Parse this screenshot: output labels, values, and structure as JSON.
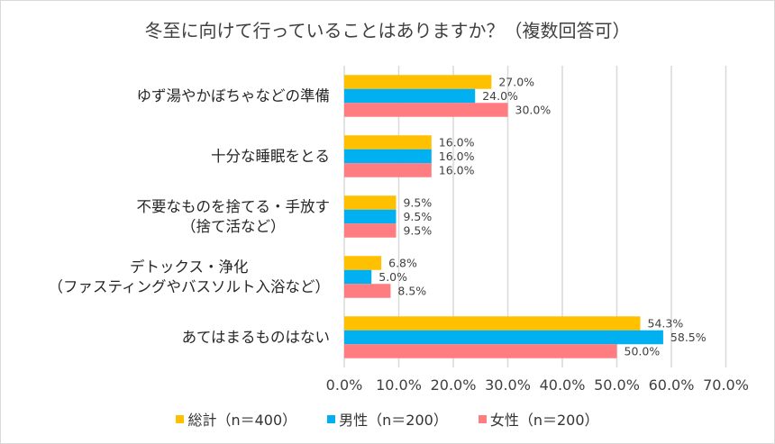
{
  "chart_data": {
    "type": "bar",
    "orientation": "horizontal",
    "title": "冬至に向けて行っていることはありますか？（複数回答可）",
    "categories": [
      [
        "ゆず湯やかぼちゃなどの準備"
      ],
      [
        "十分な睡眠をとる"
      ],
      [
        "不要なものを捨てる・手放す",
        "（捨て活など）"
      ],
      [
        "デトックス・浄化",
        "（ファスティングやバスソルト入浴など）"
      ],
      [
        "あてはまるものはない"
      ]
    ],
    "series": [
      {
        "name": "総計（n＝400）",
        "color": "#FFC000",
        "values": [
          27.0,
          16.0,
          9.5,
          6.8,
          54.3
        ]
      },
      {
        "name": "男性（n＝200）",
        "color": "#00B0F0",
        "values": [
          24.0,
          16.0,
          9.5,
          5.0,
          58.5
        ]
      },
      {
        "name": "女性（n＝200）",
        "color": "#FF7C80",
        "values": [
          30.0,
          16.0,
          9.5,
          8.5,
          50.0
        ]
      }
    ],
    "xlim": [
      0,
      70
    ],
    "xticks": [
      0,
      10,
      20,
      30,
      40,
      50,
      60,
      70
    ],
    "xtick_labels": [
      "0.0%",
      "10.0%",
      "20.0%",
      "30.0%",
      "40.0%",
      "50.0%",
      "60.0%",
      "70.0%"
    ],
    "value_format": "%",
    "grid": true,
    "legend_position": "bottom",
    "xlabel": "",
    "ylabel": ""
  }
}
